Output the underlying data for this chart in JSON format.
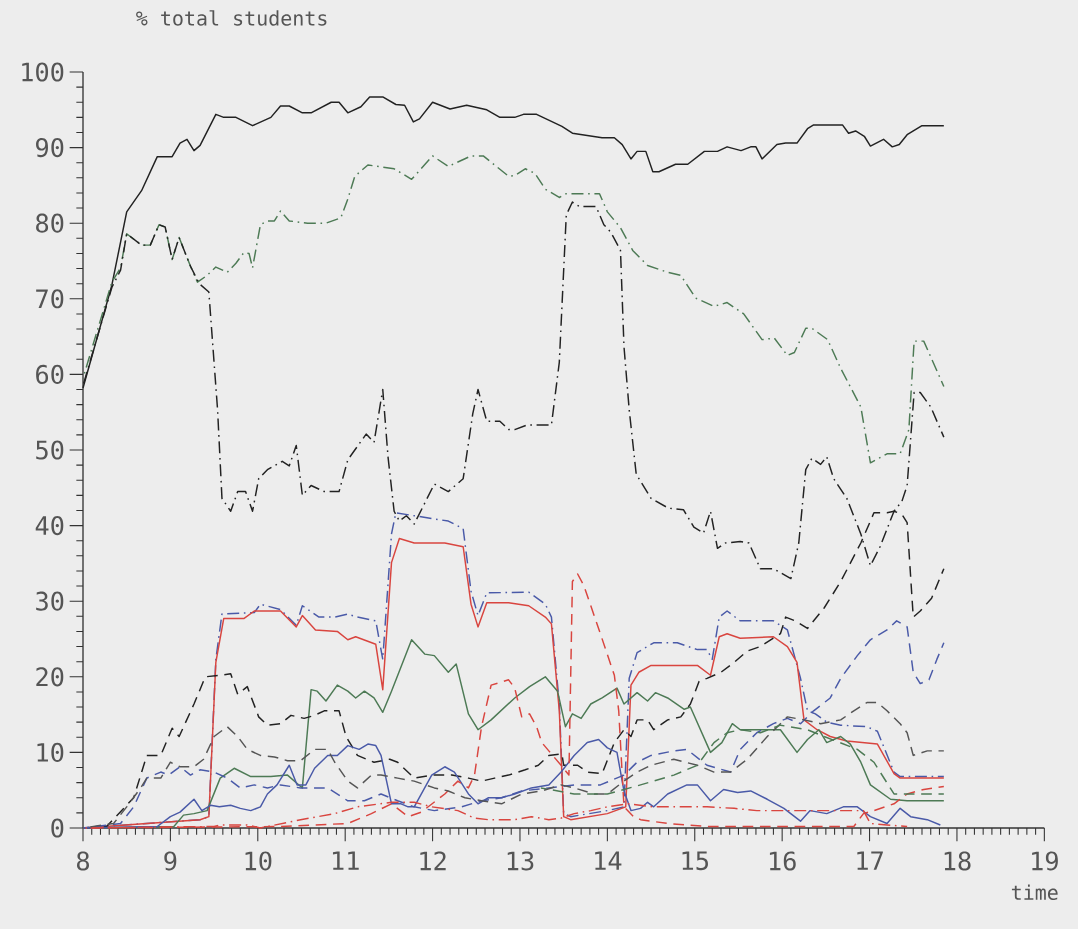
{
  "chart_data": {
    "type": "line",
    "ylabel": "% total students",
    "xlabel": "time",
    "xlim": [
      8,
      19
    ],
    "ylim": [
      0,
      100
    ],
    "xticks": [
      8,
      9,
      10,
      11,
      12,
      13,
      14,
      15,
      16,
      17,
      18,
      19
    ],
    "yticks": [
      0,
      10,
      20,
      30,
      40,
      50,
      60,
      70,
      80,
      90,
      100
    ],
    "grid": false,
    "series": [
      {
        "color": "#222222",
        "line_style": "solid",
        "x": [
          8.0,
          8.33,
          8.5,
          8.67,
          8.85,
          9.02,
          9.11,
          9.19,
          9.27,
          9.34,
          9.52,
          9.61,
          9.75,
          9.94,
          10.15,
          10.26,
          10.36,
          10.51,
          10.61,
          10.84,
          10.93,
          11.03,
          11.18,
          11.28,
          11.43,
          11.58,
          11.68,
          11.78,
          11.85,
          12.0,
          12.2,
          12.39,
          12.62,
          12.77,
          12.94,
          13.04,
          13.19,
          13.48,
          13.6,
          13.77,
          13.94,
          14.08,
          14.17,
          14.27,
          14.34,
          14.44,
          14.52,
          14.59,
          14.78,
          14.92,
          15.11,
          15.26,
          15.37,
          15.53,
          15.64,
          15.7,
          15.77,
          15.94,
          16.04,
          16.17,
          16.29,
          16.36,
          16.69,
          16.76,
          16.84,
          16.94,
          17.01,
          17.16,
          17.26,
          17.34,
          17.43,
          17.6,
          17.85
        ],
        "values": [
          58.2,
          71.8,
          81.5,
          84.3,
          88.8,
          88.8,
          90.6,
          91.1,
          89.6,
          90.3,
          94.4,
          94.0,
          94.0,
          92.9,
          94.0,
          95.5,
          95.5,
          94.6,
          94.6,
          96.0,
          96.0,
          94.6,
          95.4,
          96.7,
          96.7,
          95.7,
          95.6,
          93.4,
          93.8,
          96.0,
          95.1,
          95.6,
          95.0,
          94.0,
          94.0,
          94.4,
          94.4,
          92.8,
          91.9,
          91.6,
          91.3,
          91.3,
          90.4,
          88.5,
          89.5,
          89.5,
          86.8,
          86.8,
          87.8,
          87.8,
          89.5,
          89.5,
          90.1,
          89.6,
          90.1,
          90.1,
          88.5,
          90.4,
          90.6,
          90.6,
          92.5,
          93.0,
          93.0,
          91.9,
          92.2,
          91.5,
          90.2,
          91.1,
          90.1,
          90.4,
          91.7,
          92.9,
          92.9
        ]
      },
      {
        "color": "#4d7a55",
        "line_style": "dashdot",
        "x": [
          8.0,
          8.33,
          8.43,
          8.5,
          8.67,
          8.77,
          8.87,
          8.94,
          9.02,
          9.1,
          9.23,
          9.31,
          9.42,
          9.52,
          9.65,
          9.75,
          9.84,
          9.9,
          9.94,
          10.03,
          10.11,
          10.19,
          10.26,
          10.36,
          10.57,
          10.78,
          10.95,
          11.03,
          11.11,
          11.26,
          11.56,
          11.76,
          12.0,
          12.18,
          12.44,
          12.58,
          12.71,
          12.87,
          12.94,
          13.06,
          13.17,
          13.29,
          13.45,
          13.53,
          13.91,
          14.0,
          14.15,
          14.29,
          14.46,
          14.69,
          14.84,
          15.01,
          15.22,
          15.37,
          15.56,
          15.77,
          15.91,
          16.06,
          16.14,
          16.27,
          16.34,
          16.52,
          16.67,
          16.9,
          17.01,
          17.2,
          17.35,
          17.45,
          17.51,
          17.62,
          17.85
        ],
        "values": [
          59.5,
          72.2,
          74.1,
          78.6,
          77.1,
          77.1,
          79.8,
          79.5,
          75.2,
          78.1,
          74.3,
          72.2,
          73.1,
          74.2,
          73.5,
          74.7,
          76.1,
          76.0,
          74.1,
          79.8,
          80.3,
          80.3,
          81.6,
          80.3,
          80.0,
          80.0,
          80.7,
          83.2,
          86.2,
          87.7,
          87.2,
          85.8,
          88.9,
          87.5,
          88.9,
          88.9,
          87.7,
          86.2,
          86.3,
          87.2,
          86.6,
          84.5,
          83.4,
          83.9,
          83.9,
          81.5,
          79.4,
          76.4,
          74.4,
          73.5,
          73.1,
          70.1,
          69.0,
          69.5,
          68.0,
          64.6,
          64.8,
          62.5,
          62.9,
          66.1,
          66.1,
          64.6,
          60.8,
          55.7,
          48.3,
          49.5,
          49.5,
          52.7,
          64.4,
          64.4,
          58.4
        ]
      },
      {
        "color": "#222222",
        "line_style": "dashdot",
        "x": [
          8.0,
          8.33,
          8.43,
          8.5,
          8.67,
          8.77,
          8.87,
          8.94,
          9.02,
          9.1,
          9.23,
          9.33,
          9.44,
          9.54,
          9.59,
          9.69,
          9.77,
          9.86,
          9.94,
          10.01,
          10.11,
          10.28,
          10.36,
          10.44,
          10.51,
          10.61,
          10.76,
          10.93,
          11.03,
          11.11,
          11.24,
          11.33,
          11.43,
          11.49,
          11.56,
          11.62,
          11.7,
          11.79,
          12.02,
          12.18,
          12.35,
          12.46,
          12.52,
          12.62,
          12.77,
          12.87,
          12.94,
          13.08,
          13.36,
          13.45,
          13.53,
          13.6,
          13.68,
          13.87,
          13.96,
          14.04,
          14.15,
          14.19,
          14.25,
          14.33,
          14.5,
          14.7,
          14.87,
          14.99,
          15.1,
          15.18,
          15.26,
          15.35,
          15.52,
          15.62,
          15.75,
          15.9,
          16.1,
          16.19,
          16.27,
          16.34,
          16.44,
          16.51,
          16.59,
          16.74,
          16.9,
          17.01,
          17.12,
          17.28,
          17.37,
          17.43,
          17.51,
          17.58,
          17.7,
          17.85
        ],
        "values": [
          58.5,
          71.5,
          73.8,
          78.6,
          77.1,
          77.1,
          79.8,
          79.5,
          75.2,
          78.1,
          74.3,
          72.0,
          70.9,
          55.3,
          43.6,
          41.9,
          44.5,
          44.5,
          41.9,
          46.2,
          47.4,
          48.5,
          47.9,
          50.6,
          44.0,
          45.3,
          44.5,
          44.5,
          48.7,
          50.0,
          52.1,
          51.0,
          58.0,
          49.1,
          41.9,
          40.6,
          41.3,
          40.2,
          45.5,
          44.5,
          46.2,
          54.8,
          58.0,
          53.8,
          53.8,
          52.7,
          52.7,
          53.3,
          53.3,
          61.6,
          81.1,
          82.8,
          82.2,
          82.2,
          79.8,
          78.8,
          76.4,
          63.7,
          55.3,
          46.8,
          43.6,
          42.3,
          42.1,
          39.8,
          39.0,
          41.9,
          37.0,
          37.7,
          37.9,
          37.7,
          34.3,
          34.3,
          33.0,
          37.7,
          47.4,
          48.9,
          48.1,
          49.1,
          46.2,
          43.6,
          38.9,
          34.7,
          37.2,
          41.9,
          43.2,
          45.3,
          57.6,
          57.6,
          55.7,
          51.7
        ]
      },
      {
        "color": "#4a5aa8",
        "line_style": "dashdot",
        "x": [
          8.0,
          9.34,
          9.44,
          9.52,
          9.59,
          9.96,
          10.03,
          10.26,
          10.44,
          10.51,
          10.7,
          10.88,
          11.03,
          11.14,
          11.35,
          11.43,
          11.53,
          11.58,
          11.79,
          12.18,
          12.35,
          12.44,
          12.52,
          12.62,
          13.1,
          13.29,
          13.36,
          13.45,
          13.5,
          13.58,
          14.0,
          14.19,
          14.25,
          14.34,
          14.53,
          14.8,
          15.03,
          15.14,
          15.2,
          15.28,
          15.37,
          15.52,
          15.9,
          16.06,
          16.21,
          16.29,
          16.38,
          16.51,
          16.67,
          16.97,
          17.09,
          17.28,
          17.35,
          17.85
        ],
        "values": [
          0,
          1.1,
          1.5,
          22.3,
          28.3,
          28.5,
          29.6,
          28.9,
          26.8,
          29.4,
          27.9,
          27.9,
          28.3,
          27.9,
          27.4,
          22.3,
          38.9,
          41.7,
          41.3,
          40.6,
          39.6,
          31.3,
          28.1,
          31.1,
          31.2,
          29.6,
          27.9,
          16.4,
          1.9,
          1.5,
          2.3,
          2.8,
          19.8,
          23.2,
          24.5,
          24.5,
          23.6,
          23.6,
          22.3,
          27.9,
          28.7,
          27.4,
          27.4,
          26.2,
          19.8,
          15.5,
          15.1,
          14.0,
          13.6,
          13.4,
          12.8,
          7.4,
          6.8,
          6.8
        ]
      },
      {
        "color": "#d9453f",
        "line_style": "solid",
        "x": [
          8.0,
          9.34,
          9.44,
          9.52,
          9.61,
          9.84,
          9.96,
          10.26,
          10.44,
          10.51,
          10.66,
          10.91,
          11.03,
          11.12,
          11.35,
          11.43,
          11.53,
          11.62,
          11.79,
          12.14,
          12.35,
          12.44,
          12.52,
          12.62,
          12.87,
          13.1,
          13.29,
          13.36,
          13.45,
          13.5,
          13.58,
          14.0,
          14.21,
          14.27,
          14.36,
          14.5,
          15.03,
          15.18,
          15.28,
          15.37,
          15.52,
          15.9,
          16.06,
          16.17,
          16.25,
          16.4,
          16.55,
          16.74,
          17.09,
          17.28,
          17.35,
          17.85
        ],
        "values": [
          0,
          1.1,
          1.5,
          21.9,
          27.7,
          27.7,
          28.7,
          28.7,
          26.6,
          28.1,
          26.2,
          26.0,
          24.9,
          25.3,
          24.3,
          18.3,
          35.1,
          38.3,
          37.7,
          37.7,
          37.2,
          29.6,
          26.6,
          29.8,
          29.8,
          29.4,
          27.9,
          27.0,
          15.5,
          1.5,
          1.1,
          1.9,
          2.8,
          18.9,
          20.6,
          21.5,
          21.5,
          20.2,
          25.3,
          25.7,
          25.1,
          25.3,
          24.0,
          21.9,
          14.3,
          13.0,
          12.1,
          11.5,
          11.1,
          7.2,
          6.6,
          6.6
        ]
      },
      {
        "color": "#4d7a55",
        "line_style": "solid",
        "x": [
          8.0,
          9.04,
          9.15,
          9.27,
          9.42,
          9.57,
          9.73,
          9.92,
          10.15,
          10.34,
          10.51,
          10.61,
          10.68,
          10.78,
          10.91,
          11.03,
          11.12,
          11.22,
          11.33,
          11.43,
          11.53,
          11.76,
          11.91,
          12.02,
          12.18,
          12.27,
          12.41,
          12.52,
          12.67,
          12.94,
          13.11,
          13.29,
          13.43,
          13.52,
          13.6,
          13.7,
          13.81,
          13.94,
          14.11,
          14.19,
          14.34,
          14.46,
          14.55,
          14.69,
          14.88,
          14.95,
          15.18,
          15.31,
          15.43,
          15.52,
          15.98,
          16.17,
          16.29,
          16.42,
          16.51,
          16.67,
          16.78,
          16.9,
          17.01,
          17.24,
          17.43,
          17.85
        ],
        "values": [
          0,
          0.2,
          1.7,
          1.9,
          2.3,
          6.6,
          7.9,
          6.8,
          6.8,
          7.0,
          5.3,
          18.3,
          18.1,
          16.8,
          18.9,
          18.1,
          17.2,
          18.1,
          17.2,
          15.3,
          18.1,
          24.9,
          23.0,
          22.8,
          20.6,
          21.7,
          15.1,
          13.0,
          14.3,
          17.2,
          18.7,
          20.0,
          18.1,
          13.4,
          15.1,
          14.5,
          16.4,
          17.2,
          18.5,
          16.4,
          17.9,
          16.8,
          17.9,
          17.2,
          15.7,
          16.0,
          10.0,
          11.3,
          13.8,
          13.0,
          13.0,
          10.0,
          11.7,
          13.0,
          11.3,
          12.1,
          11.1,
          8.7,
          5.7,
          3.8,
          3.6,
          3.6
        ]
      },
      {
        "color": "#222222",
        "line_style": "dashed",
        "x": [
          8.0,
          8.27,
          8.58,
          8.73,
          8.89,
          9.02,
          9.1,
          9.27,
          9.4,
          9.57,
          9.69,
          9.77,
          9.88,
          10.01,
          10.11,
          10.26,
          10.38,
          10.53,
          10.65,
          10.76,
          10.93,
          11.01,
          11.14,
          11.33,
          11.51,
          11.6,
          11.79,
          11.99,
          12.22,
          12.41,
          12.56,
          12.71,
          12.87,
          13.06,
          13.21,
          13.33,
          13.48,
          13.5,
          13.66,
          13.77,
          13.94,
          14.08,
          14.19,
          14.27,
          14.34,
          14.46,
          14.53,
          14.69,
          14.84,
          14.95,
          15.05,
          15.14,
          15.3,
          15.45,
          15.6,
          15.75,
          15.98,
          16.04,
          16.15,
          16.29,
          16.48,
          16.67,
          16.9,
          17.01,
          17.05,
          17.2,
          17.28,
          17.37,
          17.43,
          17.5,
          17.58,
          17.71,
          17.85
        ],
        "values": [
          0,
          0.2,
          4.0,
          9.6,
          9.6,
          13.2,
          12.1,
          16.4,
          20.0,
          20.2,
          20.4,
          17.7,
          18.7,
          14.7,
          13.6,
          13.8,
          14.9,
          14.5,
          14.9,
          15.5,
          15.5,
          12.1,
          9.6,
          8.7,
          9.1,
          8.7,
          6.6,
          7.0,
          7.0,
          6.6,
          6.2,
          6.6,
          7.0,
          7.7,
          8.3,
          9.6,
          9.8,
          8.3,
          8.3,
          7.4,
          7.2,
          11.3,
          13.0,
          12.1,
          14.3,
          14.3,
          13.0,
          14.3,
          14.7,
          16.4,
          19.4,
          19.8,
          20.6,
          21.9,
          23.4,
          24.0,
          25.7,
          27.9,
          27.4,
          26.4,
          29.1,
          32.6,
          37.7,
          40.6,
          41.7,
          41.7,
          41.9,
          41.5,
          40.4,
          27.9,
          28.7,
          30.4,
          34.3
        ]
      },
      {
        "color": "#4a5aa8",
        "line_style": "solid",
        "x": [
          8.0,
          8.85,
          9.0,
          9.11,
          9.27,
          9.36,
          9.46,
          9.56,
          9.69,
          9.8,
          9.92,
          10.03,
          10.11,
          10.22,
          10.36,
          10.45,
          10.55,
          10.65,
          10.8,
          10.91,
          11.03,
          11.16,
          11.26,
          11.35,
          11.41,
          11.53,
          11.64,
          11.72,
          11.79,
          11.99,
          12.14,
          12.25,
          12.41,
          12.52,
          12.64,
          12.79,
          12.94,
          13.13,
          13.33,
          13.47,
          13.62,
          13.77,
          13.9,
          14.0,
          14.11,
          14.19,
          14.27,
          14.38,
          14.46,
          14.53,
          14.69,
          14.91,
          15.03,
          15.18,
          15.33,
          15.49,
          15.64,
          15.83,
          16.02,
          16.21,
          16.32,
          16.51,
          16.7,
          16.86,
          17.01,
          17.2,
          17.35,
          17.47,
          17.66,
          17.81
        ],
        "values": [
          0,
          0.2,
          1.5,
          2.1,
          3.8,
          2.3,
          3.0,
          2.8,
          3.0,
          2.6,
          2.3,
          2.8,
          4.5,
          5.7,
          8.3,
          5.7,
          5.7,
          7.9,
          9.6,
          9.6,
          10.9,
          10.4,
          11.1,
          10.9,
          9.6,
          3.2,
          3.2,
          2.8,
          2.8,
          7.0,
          8.1,
          7.4,
          4.5,
          3.2,
          4.0,
          4.0,
          4.5,
          5.3,
          5.7,
          7.4,
          9.6,
          11.3,
          11.7,
          10.6,
          10.0,
          4.9,
          2.3,
          2.6,
          3.4,
          2.8,
          4.5,
          5.7,
          5.7,
          3.6,
          5.1,
          4.7,
          4.9,
          3.8,
          2.6,
          0.9,
          2.3,
          1.9,
          2.8,
          2.8,
          1.5,
          0.6,
          2.6,
          1.5,
          1.1,
          0.4
        ]
      },
      {
        "color": "#d9453f",
        "line_style": "dashed",
        "x": [
          8.0,
          10.26,
          11.03,
          11.3,
          11.53,
          11.72,
          11.87,
          12.14,
          12.29,
          12.41,
          12.48,
          12.56,
          12.67,
          12.87,
          12.94,
          13.02,
          13.11,
          13.19,
          13.25,
          13.33,
          13.47,
          13.56,
          13.6,
          13.66,
          13.73,
          13.92,
          14.08,
          14.13,
          14.19,
          14.3,
          14.38,
          14.69,
          15.14,
          16.82,
          16.93,
          17.05,
          17.28,
          17.43,
          17.62,
          17.85
        ],
        "values": [
          0,
          0.2,
          0.6,
          1.9,
          3.2,
          1.5,
          2.1,
          4.5,
          6.2,
          5.3,
          7.0,
          13.4,
          18.9,
          19.6,
          18.5,
          14.7,
          15.1,
          13.4,
          11.3,
          10.2,
          8.3,
          7.0,
          32.6,
          33.6,
          32.1,
          25.7,
          20.2,
          15.5,
          2.8,
          1.5,
          1.1,
          0.6,
          0.2,
          0.2,
          1.9,
          2.3,
          3.2,
          4.5,
          5.1,
          5.5
        ]
      },
      {
        "color": "#4a5aa8",
        "line_style": "dashed",
        "x": [
          8.0,
          8.43,
          8.58,
          8.73,
          8.89,
          8.98,
          9.11,
          9.23,
          9.34,
          9.5,
          9.65,
          9.8,
          9.96,
          10.11,
          10.26,
          10.49,
          10.8,
          11.03,
          11.22,
          11.41,
          11.6,
          11.79,
          12.02,
          12.33,
          12.56,
          12.79,
          13.02,
          13.33,
          13.62,
          13.92,
          14.19,
          14.34,
          14.5,
          14.76,
          14.91,
          15.14,
          15.41,
          15.52,
          15.71,
          15.9,
          16.06,
          16.21,
          16.36,
          16.55,
          16.67,
          16.86,
          17.01,
          17.2,
          17.31,
          17.43,
          17.5,
          17.58,
          17.68,
          17.77,
          17.85
        ],
        "values": [
          0,
          0.6,
          2.8,
          6.6,
          7.4,
          7.0,
          8.1,
          7.0,
          7.7,
          7.4,
          6.6,
          5.3,
          5.7,
          5.3,
          5.7,
          5.3,
          5.3,
          3.6,
          3.6,
          4.5,
          3.6,
          2.8,
          2.3,
          2.8,
          3.6,
          4.0,
          4.9,
          5.3,
          5.7,
          5.7,
          7.0,
          8.7,
          9.6,
          10.2,
          10.4,
          8.3,
          7.4,
          10.4,
          12.6,
          13.8,
          14.5,
          13.8,
          15.5,
          17.2,
          19.8,
          22.8,
          24.9,
          26.2,
          27.4,
          26.6,
          20.6,
          19.1,
          19.6,
          22.3,
          24.5
        ]
      },
      {
        "color": "#555555",
        "line_style": "dashed",
        "x": [
          8.0,
          8.35,
          8.5,
          8.66,
          8.73,
          8.89,
          9.0,
          9.11,
          9.27,
          9.38,
          9.5,
          9.65,
          9.77,
          9.88,
          10.03,
          10.19,
          10.34,
          10.49,
          10.65,
          10.8,
          10.88,
          11.03,
          11.14,
          11.3,
          11.41,
          11.6,
          11.79,
          12.02,
          12.18,
          12.37,
          12.56,
          12.79,
          13.02,
          13.25,
          13.47,
          13.62,
          13.85,
          14.0,
          14.19,
          14.34,
          14.5,
          14.76,
          15.03,
          15.22,
          15.41,
          15.6,
          15.83,
          16.06,
          16.25,
          16.44,
          16.67,
          16.82,
          16.97,
          17.09,
          17.2,
          17.35,
          17.43,
          17.5,
          17.66,
          17.85
        ],
        "values": [
          0,
          0.6,
          2.8,
          5.3,
          6.6,
          6.6,
          8.7,
          8.1,
          8.1,
          9.1,
          12.1,
          13.4,
          12.1,
          10.4,
          9.6,
          9.4,
          8.9,
          8.9,
          10.4,
          10.4,
          8.7,
          6.2,
          5.3,
          7.0,
          7.0,
          6.6,
          6.2,
          5.3,
          4.9,
          4.0,
          3.6,
          3.2,
          4.5,
          4.9,
          5.7,
          5.3,
          4.5,
          4.5,
          6.2,
          7.4,
          8.3,
          9.1,
          8.3,
          7.4,
          7.4,
          9.1,
          12.1,
          14.7,
          14.3,
          13.8,
          14.3,
          15.5,
          16.6,
          16.6,
          15.5,
          13.8,
          12.6,
          9.6,
          10.2,
          10.2
        ]
      },
      {
        "color": "#d9453f",
        "line_style": "dashdot",
        "x": [
          8.0,
          9.5,
          9.57,
          9.88,
          10.03,
          10.49,
          10.88,
          11.14,
          11.53,
          11.79,
          11.99,
          12.29,
          12.48,
          12.64,
          12.94,
          13.13,
          13.33,
          13.47,
          13.62,
          13.81,
          14.0,
          14.23,
          14.53,
          15.14,
          15.45,
          15.71,
          16.29,
          16.93,
          17.01,
          17.2,
          17.43
        ],
        "values": [
          0,
          0.2,
          0.4,
          0.4,
          0,
          1.1,
          1.9,
          2.8,
          3.4,
          3.4,
          2.8,
          2.3,
          1.3,
          1.1,
          1.1,
          1.5,
          1.1,
          1.3,
          1.9,
          2.3,
          2.8,
          3.2,
          2.8,
          2.8,
          2.6,
          2.3,
          2.3,
          2.3,
          0.6,
          0.4,
          0.2
        ]
      },
      {
        "color": "#4d7a55",
        "line_style": "dashed",
        "x": [
          13.24,
          13.62,
          14.0,
          14.38,
          14.76,
          15.03,
          15.22,
          15.37,
          15.52,
          15.75,
          15.98,
          16.29,
          16.48,
          16.86,
          17.05,
          17.28,
          17.47,
          17.85
        ],
        "values": [
          5.3,
          4.5,
          4.5,
          5.7,
          7.0,
          8.3,
          11.3,
          12.6,
          13.0,
          12.6,
          13.6,
          13.0,
          12.1,
          10.4,
          8.7,
          4.5,
          4.5,
          4.5
        ]
      }
    ]
  }
}
